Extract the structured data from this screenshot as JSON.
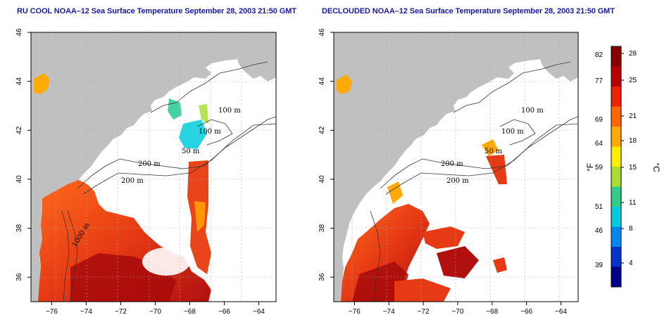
{
  "panels": [
    {
      "title": "RU COOL NOAA–12 Sea Surface Temperature September 28, 2003 21:50 GMT",
      "contour_labels": [
        "100 m",
        "100 m",
        "50 m",
        "200 m",
        "200 m",
        "1000 m"
      ]
    },
    {
      "title": "DECLOUDED NOAA–12 Sea Surface Temperature September 28, 2003 21:50 GMT",
      "contour_labels": [
        "100 m",
        "100 m",
        "50 m",
        "200 m",
        "200 m"
      ]
    }
  ],
  "axes": {
    "x_ticks": [
      "−76",
      "−74",
      "−72",
      "−70",
      "−68",
      "−66",
      "−64"
    ],
    "y_ticks": [
      "36",
      "38",
      "40",
      "42",
      "44",
      "46"
    ],
    "lon_range": [
      -77.2,
      -63
    ],
    "lat_range": [
      35,
      46
    ]
  },
  "colorbar": {
    "unit_f": "°F",
    "unit_c": "°C",
    "f_labels": [
      "82",
      "77",
      "69",
      "64",
      "59",
      "51",
      "46",
      "39"
    ],
    "c_labels": [
      "28",
      "25",
      "21",
      "18",
      "15",
      "11",
      "8",
      "4"
    ],
    "colors": [
      "#00008b",
      "#0033cc",
      "#0088ee",
      "#00ccdd",
      "#33cc88",
      "#aadd33",
      "#ffee00",
      "#ffaa00",
      "#ff6600",
      "#ee2200",
      "#bb0000",
      "#880000"
    ]
  },
  "colors": {
    "land": "#c0c0c0",
    "ocean_nodata": "#ffffff",
    "title": "#1a1aa0",
    "contour": "#333333",
    "grid": "#aaaaaa"
  }
}
